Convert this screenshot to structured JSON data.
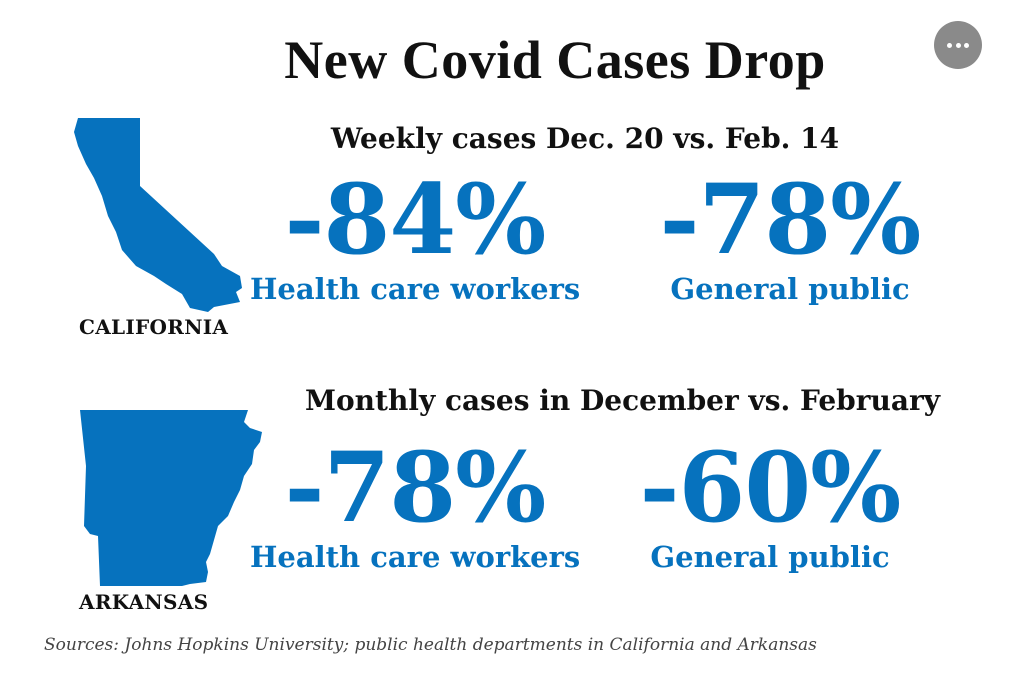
{
  "title": "New Covid Cases Drop",
  "menu": {
    "icon": "more-horizontal-icon"
  },
  "colors": {
    "accent": "#0672be",
    "text": "#111111",
    "menu_background": "#8a8a8a"
  },
  "chart_data": {
    "type": "table",
    "title": "New Covid Cases Drop",
    "panels": [
      {
        "state": "CALIFORNIA",
        "map_icon": "california-map-icon",
        "subtitle": "Weekly cases Dec. 20 vs. Feb. 14",
        "stats": [
          {
            "value_text": "-84%",
            "value": -84,
            "label": "Health care workers"
          },
          {
            "value_text": "-78%",
            "value": -78,
            "label": "General public"
          }
        ]
      },
      {
        "state": "ARKANSAS",
        "map_icon": "arkansas-map-icon",
        "subtitle": "Monthly cases in December vs. February",
        "stats": [
          {
            "value_text": "-78%",
            "value": -78,
            "label": "Health care workers"
          },
          {
            "value_text": "-60%",
            "value": -60,
            "label": "General public"
          }
        ]
      }
    ],
    "sources": "Sources: Johns Hopkins University; public health departments in California and Arkansas"
  }
}
